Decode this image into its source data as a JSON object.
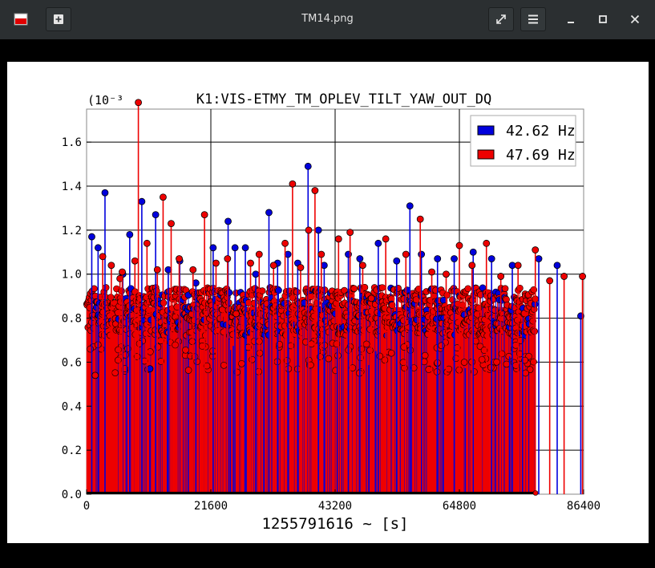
{
  "window": {
    "title": "TM14.png",
    "app_icon": "image-viewer-icon",
    "buttons": {
      "new": "plus-icon",
      "fullscreen": "expand-icon",
      "menu": "hamburger-icon",
      "minimize": "minimize-icon",
      "maximize": "maximize-icon",
      "close": "close-icon"
    }
  },
  "chart_data": {
    "type": "scatter",
    "title": "K1:VIS-ETMY_TM_OPLEV_TILT_YAW_OUT_DQ",
    "xlabel": "1255791616 ~ [s]",
    "ylabel": "",
    "y_exponent": "(10⁻³",
    "xlim": [
      0,
      86400
    ],
    "ylim": [
      0.0,
      1.75
    ],
    "xticks": [
      0,
      21600,
      43200,
      64800,
      86400
    ],
    "xtick_labels": [
      "0",
      "21600",
      "43200",
      "64800",
      "86400"
    ],
    "yticks": [
      0.0,
      0.2,
      0.4,
      0.6,
      0.8,
      1.0,
      1.2,
      1.4,
      1.6
    ],
    "ytick_labels": [
      "0.0",
      "0.2",
      "0.4",
      "0.6",
      "0.8",
      "1.0",
      "1.2",
      "1.4",
      "1.6"
    ],
    "grid": true,
    "legend_position": "top-right",
    "series": [
      {
        "name": "42.62 Hz",
        "color": "#0000dd",
        "points": [
          [
            900,
            1.17
          ],
          [
            2000,
            1.12
          ],
          [
            3200,
            1.37
          ],
          [
            6300,
            1.0
          ],
          [
            7500,
            1.18
          ],
          [
            9600,
            1.33
          ],
          [
            11000,
            0.57
          ],
          [
            12000,
            1.27
          ],
          [
            14200,
            1.02
          ],
          [
            16200,
            1.06
          ],
          [
            19000,
            0.96
          ],
          [
            22000,
            1.12
          ],
          [
            24600,
            1.24
          ],
          [
            25800,
            1.12
          ],
          [
            27600,
            1.12
          ],
          [
            29400,
            1.0
          ],
          [
            31700,
            1.28
          ],
          [
            33200,
            1.05
          ],
          [
            35000,
            1.09
          ],
          [
            36700,
            1.05
          ],
          [
            38500,
            1.49
          ],
          [
            40300,
            1.2
          ],
          [
            41300,
            1.04
          ],
          [
            45500,
            1.09
          ],
          [
            47500,
            1.07
          ],
          [
            50700,
            1.14
          ],
          [
            53900,
            1.06
          ],
          [
            56200,
            1.31
          ],
          [
            58200,
            1.09
          ],
          [
            61000,
            1.07
          ],
          [
            63900,
            1.07
          ],
          [
            67200,
            1.1
          ],
          [
            70400,
            1.07
          ],
          [
            74000,
            1.04
          ],
          [
            78600,
            1.07
          ],
          [
            81800,
            1.04
          ],
          [
            85900,
            0.81
          ]
        ]
      },
      {
        "name": "47.69 Hz",
        "color": "#ee0000",
        "points": [
          [
            1500,
            0.54
          ],
          [
            2800,
            1.08
          ],
          [
            4300,
            1.04
          ],
          [
            5800,
            0.98
          ],
          [
            6200,
            1.01
          ],
          [
            8400,
            1.06
          ],
          [
            9000,
            1.78
          ],
          [
            10500,
            1.14
          ],
          [
            12300,
            1.02
          ],
          [
            13300,
            1.35
          ],
          [
            14700,
            1.23
          ],
          [
            16100,
            1.07
          ],
          [
            18500,
            1.02
          ],
          [
            20500,
            1.27
          ],
          [
            22500,
            1.05
          ],
          [
            24500,
            1.07
          ],
          [
            26000,
            0.82
          ],
          [
            28500,
            1.05
          ],
          [
            30000,
            1.09
          ],
          [
            32500,
            1.04
          ],
          [
            34500,
            1.14
          ],
          [
            35800,
            1.41
          ],
          [
            37200,
            1.03
          ],
          [
            38600,
            1.2
          ],
          [
            39700,
            1.38
          ],
          [
            40800,
            1.09
          ],
          [
            43800,
            1.16
          ],
          [
            45800,
            1.19
          ],
          [
            48000,
            1.04
          ],
          [
            49500,
            0.89
          ],
          [
            52000,
            1.16
          ],
          [
            55500,
            1.09
          ],
          [
            58000,
            1.25
          ],
          [
            60000,
            1.01
          ],
          [
            62500,
            1.0
          ],
          [
            64800,
            1.13
          ],
          [
            67000,
            1.04
          ],
          [
            69500,
            1.14
          ],
          [
            72000,
            0.99
          ],
          [
            75000,
            1.04
          ],
          [
            78000,
            1.11
          ],
          [
            80500,
            0.97
          ],
          [
            83000,
            0.99
          ],
          [
            86200,
            0.99
          ]
        ]
      }
    ]
  }
}
